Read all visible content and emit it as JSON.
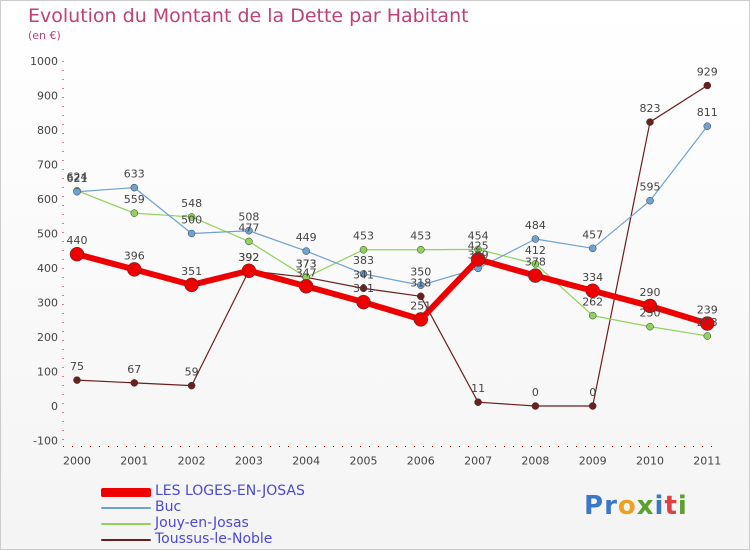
{
  "title": "Evolution du Montant de la Dette par Habitant",
  "unit": "(en €)",
  "logo": {
    "letters": [
      "P",
      "r",
      "o",
      "x",
      "i",
      "t",
      "i"
    ],
    "colors": [
      "#3b78c8",
      "#3b78c8",
      "#f0a020",
      "#5aa02c",
      "#3b78c8",
      "#e04040",
      "#5aa02c"
    ]
  },
  "chart_data": {
    "type": "line",
    "x": [
      "2000",
      "2001",
      "2002",
      "2003",
      "2004",
      "2005",
      "2006",
      "2007",
      "2008",
      "2009",
      "2010",
      "2011"
    ],
    "ylim": [
      -100,
      1000
    ],
    "yticks": [
      -100,
      0,
      100,
      200,
      300,
      400,
      500,
      600,
      700,
      800,
      900,
      1000
    ],
    "grid": false,
    "legend_position": "bottom",
    "series": [
      {
        "name": "Toussus-le-Noble",
        "color": "#6b1f1f",
        "width": 1.2,
        "marker": 3.5,
        "values": [
          75,
          67,
          59,
          392,
          373,
          341,
          318,
          11,
          0,
          0,
          823,
          929
        ],
        "labels": [
          "75",
          "67",
          "59",
          "392",
          "373",
          "341",
          "318",
          "11",
          "0",
          "0",
          "823",
          "929"
        ]
      },
      {
        "name": "Jouy-en-Josas",
        "color": "#8fd35a",
        "width": 1.2,
        "marker": 3.5,
        "values": [
          624,
          559,
          548,
          477,
          373,
          453,
          453,
          454,
          412,
          262,
          230,
          203
        ],
        "labels": [
          "624",
          "559",
          "548",
          "477",
          "373",
          "453",
          "453",
          "454",
          "412",
          "262",
          "230",
          "203"
        ]
      },
      {
        "name": "Buc",
        "color": "#6ea2d4",
        "width": 1.2,
        "marker": 3.5,
        "values": [
          621,
          633,
          500,
          508,
          449,
          383,
          350,
          399,
          484,
          457,
          595,
          811
        ],
        "labels": [
          "621",
          "633",
          "500",
          "508",
          "449",
          "383",
          "350",
          "399",
          "484",
          "457",
          "595",
          "811"
        ]
      },
      {
        "name": "LES LOGES-EN-JOSAS",
        "color": "#ee0000",
        "width": 6,
        "marker": 7,
        "values": [
          440,
          396,
          351,
          392,
          347,
          301,
          251,
          425,
          378,
          334,
          290,
          239
        ],
        "labels": [
          "440",
          "396",
          "351",
          "392",
          "347",
          "301",
          "251",
          "425",
          "378",
          "334",
          "290",
          "239"
        ]
      }
    ],
    "legend_order": [
      "LES LOGES-EN-JOSAS",
      "Buc",
      "Jouy-en-Josas",
      "Toussus-le-Noble"
    ]
  }
}
